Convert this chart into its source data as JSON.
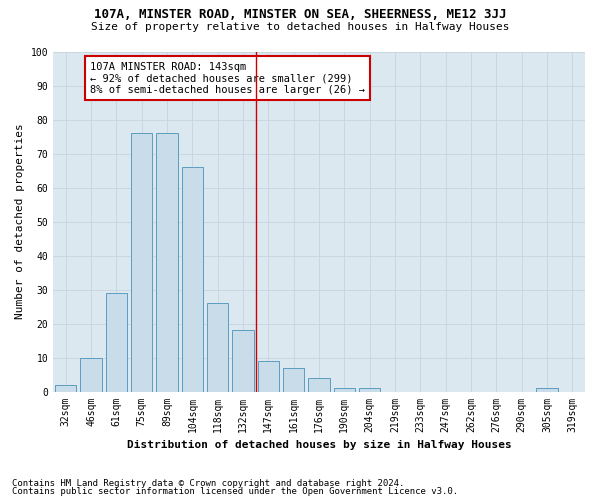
{
  "title1": "107A, MINSTER ROAD, MINSTER ON SEA, SHEERNESS, ME12 3JJ",
  "title2": "Size of property relative to detached houses in Halfway Houses",
  "xlabel": "Distribution of detached houses by size in Halfway Houses",
  "ylabel": "Number of detached properties",
  "bar_labels": [
    "32sqm",
    "46sqm",
    "61sqm",
    "75sqm",
    "89sqm",
    "104sqm",
    "118sqm",
    "132sqm",
    "147sqm",
    "161sqm",
    "176sqm",
    "190sqm",
    "204sqm",
    "219sqm",
    "233sqm",
    "247sqm",
    "262sqm",
    "276sqm",
    "290sqm",
    "305sqm",
    "319sqm"
  ],
  "bar_values": [
    2,
    10,
    29,
    76,
    76,
    66,
    26,
    18,
    9,
    7,
    4,
    1,
    1,
    0,
    0,
    0,
    0,
    0,
    0,
    1,
    0
  ],
  "bar_color": "#c9dcea",
  "bar_edge_color": "#5b9dc0",
  "grid_color": "#c8d4de",
  "background_color": "#dce8f0",
  "vline_color": "#cc0000",
  "annotation_text": "107A MINSTER ROAD: 143sqm\n← 92% of detached houses are smaller (299)\n8% of semi-detached houses are larger (26) →",
  "annotation_box_color": "#cc0000",
  "ylim": [
    0,
    100
  ],
  "yticks": [
    0,
    10,
    20,
    30,
    40,
    50,
    60,
    70,
    80,
    90,
    100
  ],
  "footnote1": "Contains HM Land Registry data © Crown copyright and database right 2024.",
  "footnote2": "Contains public sector information licensed under the Open Government Licence v3.0.",
  "title1_fontsize": 9,
  "title2_fontsize": 8,
  "xlabel_fontsize": 8,
  "ylabel_fontsize": 8,
  "tick_fontsize": 7,
  "annotation_fontsize": 7.5,
  "footnote_fontsize": 6.5
}
